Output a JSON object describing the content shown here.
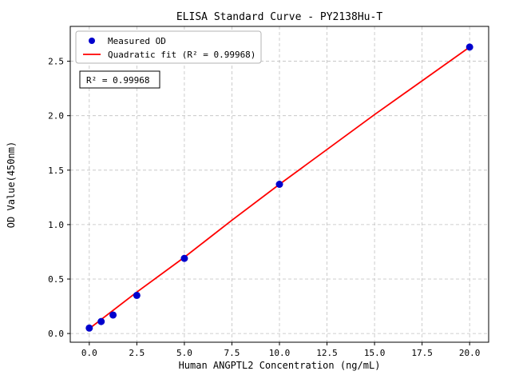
{
  "chart_data": {
    "type": "scatter",
    "title": "ELISA Standard Curve - PY2138Hu-T",
    "xlabel": "Human ANGPTL2 Concentration (ng/mL)",
    "ylabel": "OD Value(450nm)",
    "xlim": [
      -1,
      21
    ],
    "ylim": [
      -0.08,
      2.82
    ],
    "xticks": [
      0.0,
      2.5,
      5.0,
      7.5,
      10.0,
      12.5,
      15.0,
      17.5,
      20.0
    ],
    "yticks": [
      0.0,
      0.5,
      1.0,
      1.5,
      2.0,
      2.5
    ],
    "grid": true,
    "legend_position": "upper-left",
    "series": [
      {
        "name": "Measured OD",
        "type": "scatter",
        "color": "#0000cd",
        "x": [
          0,
          0.625,
          1.25,
          2.5,
          5,
          10,
          20
        ],
        "y": [
          0.05,
          0.11,
          0.17,
          0.35,
          0.69,
          1.37,
          2.63
        ]
      },
      {
        "name": "Quadratic fit (R² = 0.99968)",
        "type": "line",
        "color": "#ff0000",
        "x": [
          0,
          2.5,
          5,
          7.5,
          10,
          12.5,
          15,
          17.5,
          20
        ],
        "y": [
          0.045,
          0.38,
          0.7,
          1.04,
          1.37,
          1.69,
          2.01,
          2.32,
          2.63
        ]
      }
    ],
    "annotation": {
      "text": "R² = 0.99968"
    },
    "r_squared": 0.99968,
    "style": {
      "grid_color": "#c0c0c0",
      "point_color": "#0000cd",
      "line_color": "#ff0000",
      "legend_edge_color": "#b3b3b3",
      "spine_color": "#000000"
    }
  }
}
